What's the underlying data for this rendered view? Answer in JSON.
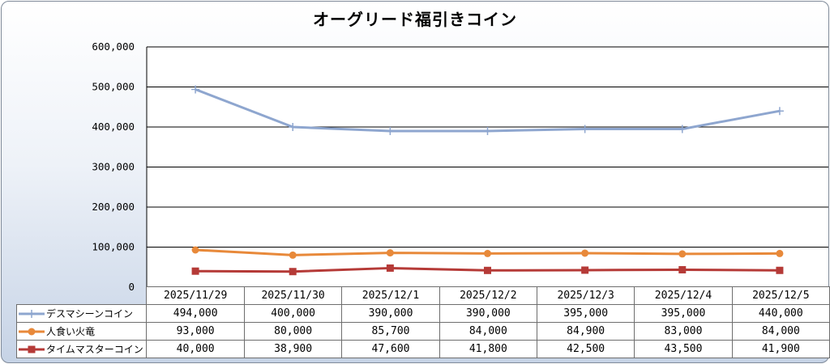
{
  "chart_data": {
    "type": "line",
    "title": "オーグリード福引きコイン",
    "categories": [
      "2025/11/29",
      "2025/11/30",
      "2025/12/1",
      "2025/12/2",
      "2025/12/3",
      "2025/12/4",
      "2025/12/5"
    ],
    "yticks": [
      "600,000",
      "500,000",
      "400,000",
      "300,000",
      "200,000",
      "100,000",
      "0"
    ],
    "ylim": [
      0,
      600000
    ],
    "grid": true,
    "legend": "data-table",
    "series": [
      {
        "name": "デスマシーンコイン",
        "values": [
          494000,
          400000,
          390000,
          390000,
          395000,
          395000,
          440000
        ],
        "labels": [
          "494,000",
          "400,000",
          "390,000",
          "390,000",
          "395,000",
          "395,000",
          "440,000"
        ],
        "color": "#8ea6cf",
        "marker": "plus"
      },
      {
        "name": "人食い火竜",
        "values": [
          93000,
          80000,
          85700,
          84000,
          84900,
          83000,
          84000
        ],
        "labels": [
          "93,000",
          "80,000",
          "85,700",
          "84,000",
          "84,900",
          "83,000",
          "84,000"
        ],
        "color": "#e8893a",
        "marker": "circle"
      },
      {
        "name": "タイムマスターコイン",
        "values": [
          40000,
          38900,
          47600,
          41800,
          42500,
          43500,
          41900
        ],
        "labels": [
          "40,000",
          "38,900",
          "47,600",
          "41,800",
          "42,500",
          "43,500",
          "41,900"
        ],
        "color": "#b53a37",
        "marker": "square"
      }
    ]
  }
}
